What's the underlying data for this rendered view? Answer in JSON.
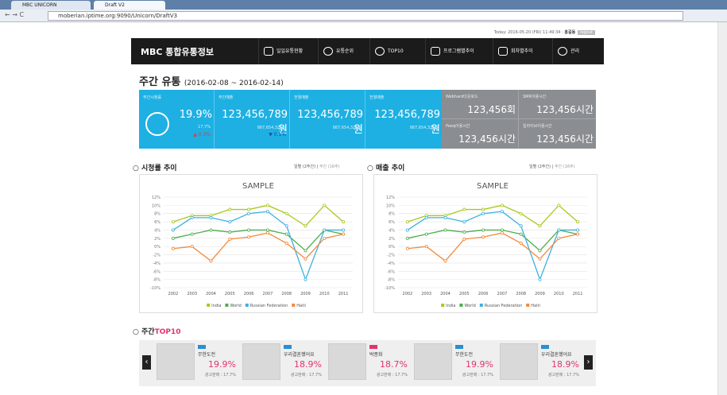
{
  "browser": {
    "tabs": [
      "MBC UNICORN",
      "Draft V2"
    ],
    "url": "moberian.iptime.org:9090/Unicorn/DraftV3"
  },
  "header": {
    "today": "Today: 2016-05-20 (FRI) 11:49:34 :",
    "user": "홍길동",
    "logout": "logout",
    "logo": "MBC 통합유통정보",
    "menu": [
      "일일유통현황",
      "유통순위",
      "TOP10",
      "프로그램별추이",
      "회차별추이",
      "관리"
    ]
  },
  "weekly": {
    "title": "주간 유통",
    "period": "(2016-02-08 ~ 2016-02-14)",
    "stats": [
      {
        "label": "주간시청률",
        "value": "19.9%",
        "sub": "17.7%",
        "change": "▲ 0.3%"
      },
      {
        "label": "주간매출",
        "value": "123,456,789원",
        "sub": "987,654,321원",
        "change": "▼ 0.1%"
      },
      {
        "label": "전월매출",
        "value": "123,456,789원",
        "sub": "987,654,321원"
      },
      {
        "label": "전월매출",
        "value": "123,456,789원",
        "sub": "987,654,321원"
      }
    ],
    "usage": [
      {
        "label": "Webhard다운로드",
        "value": "123,456회"
      },
      {
        "label": "SMR이용시간",
        "value": "123,456시간"
      },
      {
        "label": "Pooq이용시간",
        "value": "123,456시간"
      },
      {
        "label": "일라이브이용시간",
        "value": "123,456시간"
      }
    ]
  },
  "sections": [
    {
      "title": "시청률 추이",
      "tab1": "일별 (2주간)",
      "tab2": "주간 (16주)"
    },
    {
      "title": "매출 추이",
      "tab1": "일별 (2주간)",
      "tab2": "주간 (16주)"
    }
  ],
  "chart_data": [
    {
      "type": "line",
      "title": "SAMPLE",
      "categories": [
        "2002",
        "2003",
        "2004",
        "2005",
        "2006",
        "2007",
        "2008",
        "2009",
        "2010",
        "2011"
      ],
      "ylim": [
        -10,
        12
      ],
      "yticks": [
        {
          "value": -10,
          "label": "-10%"
        },
        {
          "value": -8,
          "label": "-8%"
        },
        {
          "value": -6,
          "label": "-6%"
        },
        {
          "value": -4,
          "label": "-4%"
        },
        {
          "value": -2,
          "label": "-2%"
        },
        {
          "value": 0,
          "label": "0%"
        },
        {
          "value": 2,
          "label": "2%"
        },
        {
          "value": 4,
          "label": "4%"
        },
        {
          "value": 6,
          "label": "6%"
        },
        {
          "value": 8,
          "label": "8%"
        },
        {
          "value": 10,
          "label": "10%"
        },
        {
          "value": 12,
          "label": "12%"
        }
      ],
      "grid": true,
      "series": [
        {
          "name": "India",
          "color": "#a9c81e",
          "values": [
            6,
            7.5,
            7.5,
            9,
            9,
            10,
            8,
            5,
            10,
            6
          ]
        },
        {
          "name": "World",
          "color": "#4cae4c",
          "values": [
            2,
            3,
            4,
            3.5,
            4,
            4,
            3,
            -1,
            4,
            3
          ]
        },
        {
          "name": "Russian Federation",
          "color": "#3fb0e0",
          "values": [
            4,
            7,
            7,
            6,
            8,
            8.5,
            5,
            -8,
            4,
            4
          ]
        },
        {
          "name": "Haiti",
          "color": "#f5893a",
          "values": [
            -0.5,
            0,
            -3.5,
            1.8,
            2.3,
            3.3,
            0.8,
            -3,
            2,
            3
          ]
        }
      ]
    },
    {
      "type": "line",
      "title": "SAMPLE",
      "categories": [
        "2002",
        "2003",
        "2004",
        "2005",
        "2006",
        "2007",
        "2008",
        "2009",
        "2010",
        "2011"
      ],
      "ylim": [
        -10,
        12
      ],
      "yticks": [
        {
          "value": -10,
          "label": "-10%"
        },
        {
          "value": -8,
          "label": "-8%"
        },
        {
          "value": -6,
          "label": "-6%"
        },
        {
          "value": -4,
          "label": "-4%"
        },
        {
          "value": -2,
          "label": "-2%"
        },
        {
          "value": 0,
          "label": "0%"
        },
        {
          "value": 2,
          "label": "2%"
        },
        {
          "value": 4,
          "label": "4%"
        },
        {
          "value": 6,
          "label": "6%"
        },
        {
          "value": 8,
          "label": "8%"
        },
        {
          "value": 10,
          "label": "10%"
        },
        {
          "value": 12,
          "label": "12%"
        }
      ],
      "grid": true,
      "series": [
        {
          "name": "India",
          "color": "#a9c81e",
          "values": [
            6,
            7.5,
            7.5,
            9,
            9,
            10,
            8,
            5,
            10,
            6
          ]
        },
        {
          "name": "World",
          "color": "#4cae4c",
          "values": [
            2,
            3,
            4,
            3.5,
            4,
            4,
            3,
            -1,
            4,
            3
          ]
        },
        {
          "name": "Russian Federation",
          "color": "#3fb0e0",
          "values": [
            4,
            7,
            7,
            6,
            8,
            8.5,
            5,
            -8,
            4,
            4
          ]
        },
        {
          "name": "Haiti",
          "color": "#f5893a",
          "values": [
            -0.5,
            0,
            -3.5,
            1.8,
            2.3,
            3.3,
            0.8,
            -3,
            2,
            3
          ]
        }
      ]
    }
  ],
  "top10": {
    "title": "주간",
    "accent": "TOP10",
    "cards": [
      {
        "name": "무한도전",
        "rate": "19.9%",
        "ad": "광고판매 : 17.7%"
      },
      {
        "name": "우리결혼했어요",
        "rate": "18.9%",
        "ad": "광고판매 : 17.7%"
      },
      {
        "name": "박종화",
        "rate": "18.7%",
        "ad": "광고판매 : 17.7%"
      },
      {
        "name": "무한도전",
        "rate": "19.9%",
        "ad": "광고판매 : 17.7%"
      },
      {
        "name": "우리결혼했어요",
        "rate": "18.9%",
        "ad": "광고판매 : 17.7%"
      }
    ]
  }
}
